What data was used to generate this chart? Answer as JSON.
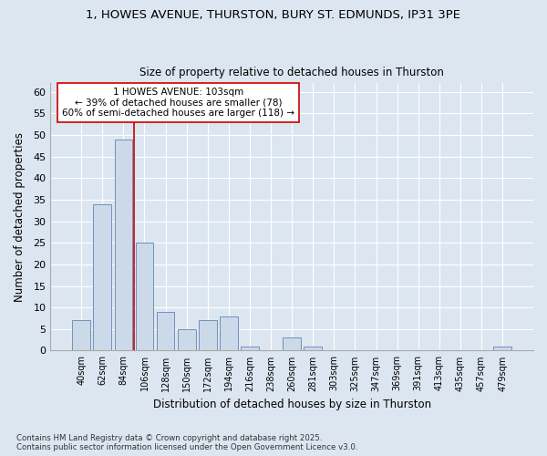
{
  "title1": "1, HOWES AVENUE, THURSTON, BURY ST. EDMUNDS, IP31 3PE",
  "title2": "Size of property relative to detached houses in Thurston",
  "xlabel": "Distribution of detached houses by size in Thurston",
  "ylabel": "Number of detached properties",
  "categories": [
    "40sqm",
    "62sqm",
    "84sqm",
    "106sqm",
    "128sqm",
    "150sqm",
    "172sqm",
    "194sqm",
    "216sqm",
    "238sqm",
    "260sqm",
    "281sqm",
    "303sqm",
    "325sqm",
    "347sqm",
    "369sqm",
    "391sqm",
    "413sqm",
    "435sqm",
    "457sqm",
    "479sqm"
  ],
  "values": [
    7,
    34,
    49,
    25,
    9,
    5,
    7,
    8,
    1,
    0,
    3,
    1,
    0,
    0,
    0,
    0,
    0,
    0,
    0,
    0,
    1
  ],
  "bar_color": "#ccd9e8",
  "bar_edge_color": "#7090bb",
  "property_line_color": "#cc0000",
  "annotation_line1": "1 HOWES AVENUE: 103sqm",
  "annotation_line2": "← 39% of detached houses are smaller (78)",
  "annotation_line3": "60% of semi-detached houses are larger (118) →",
  "annotation_box_color": "#ffffff",
  "annotation_box_edge": "#cc0000",
  "background_color": "#dce6f0",
  "plot_bg_color": "#dce6f0",
  "grid_color": "#ffffff",
  "footnote": "Contains HM Land Registry data © Crown copyright and database right 2025.\nContains public sector information licensed under the Open Government Licence v3.0.",
  "ylim": [
    0,
    62
  ],
  "yticks": [
    0,
    5,
    10,
    15,
    20,
    25,
    30,
    35,
    40,
    45,
    50,
    55,
    60
  ]
}
